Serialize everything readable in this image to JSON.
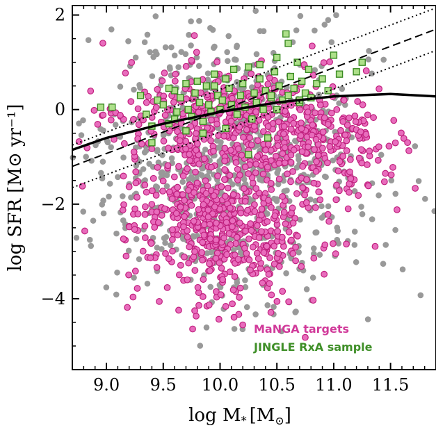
{
  "chart_data": {
    "type": "scatter",
    "xlabel": "log M",
    "xlabel_sub": "*",
    "xlabel_unit": "[M",
    "xlabel_unit_sub": "⊙",
    "xlabel_unit_end": "]",
    "ylabel": "log SFR [M⊙ yr⁻¹]",
    "xlim": [
      8.7,
      11.9
    ],
    "ylim": [
      -5.5,
      2.2
    ],
    "x_ticks": [
      9.0,
      9.5,
      10.0,
      10.5,
      11.0,
      11.5
    ],
    "x_tick_labels": [
      "9.0",
      "9.5",
      "10.0",
      "10.5",
      "11.0",
      "11.5"
    ],
    "y_ticks": [
      -4,
      -2,
      0,
      2
    ],
    "y_tick_labels": [
      "−4",
      "−2",
      "0",
      "2"
    ],
    "grid": false,
    "legend_position": "bottom-right",
    "colors": {
      "background_sample": "#999999",
      "manga_fill": "#e86cbc",
      "manga_edge": "#c0207e",
      "jingle_fill": "#aee08a",
      "jingle_edge": "#3a8a22"
    },
    "series": [
      {
        "name": "MaNGA targets",
        "marker": "circle",
        "distribution": {
          "regions": [
            {
              "x_mean": 10.0,
              "x_sd": 0.42,
              "y_mean": -2.4,
              "y_sd": 0.85,
              "n": 560
            },
            {
              "x_mean": 10.1,
              "x_sd": 0.55,
              "y_mean": -0.2,
              "y_sd": 0.55,
              "n": 420
            },
            {
              "x_mean": 10.9,
              "x_sd": 0.35,
              "y_mean": -0.9,
              "y_sd": 0.65,
              "n": 150
            }
          ]
        }
      },
      {
        "name": "JINGLE RxA sample",
        "marker": "square",
        "x": [
          8.95,
          9.05,
          9.3,
          9.35,
          9.4,
          9.45,
          9.5,
          9.55,
          9.6,
          9.62,
          9.65,
          9.7,
          9.72,
          9.75,
          9.78,
          9.8,
          9.82,
          9.85,
          9.88,
          9.9,
          9.92,
          9.95,
          9.98,
          10.0,
          10.02,
          10.05,
          10.08,
          10.1,
          10.12,
          10.15,
          10.18,
          10.2,
          10.22,
          10.25,
          10.28,
          10.3,
          10.32,
          10.35,
          10.38,
          10.4,
          10.42,
          10.45,
          10.48,
          10.5,
          10.52,
          10.55,
          10.58,
          10.6,
          10.62,
          10.65,
          10.68,
          10.7,
          10.72,
          10.75,
          10.78,
          10.8,
          10.85,
          10.9,
          10.95,
          11.0,
          11.05,
          11.2,
          11.25,
          9.4,
          9.55,
          9.85,
          10.25,
          10.6,
          10.7,
          10.45,
          9.7,
          10.05,
          10.35,
          10.5,
          9.6,
          9.95
        ],
        "y": [
          0.05,
          0.05,
          0.3,
          -0.1,
          -0.7,
          0.2,
          0.1,
          -0.3,
          0.4,
          -0.05,
          0.25,
          0.55,
          0.0,
          -0.15,
          0.35,
          0.6,
          0.15,
          -0.25,
          0.5,
          0.1,
          -0.05,
          0.75,
          0.3,
          0.0,
          0.2,
          -0.4,
          0.45,
          0.1,
          0.85,
          -0.1,
          0.3,
          0.55,
          0.05,
          0.9,
          -0.2,
          0.35,
          0.15,
          0.65,
          0.0,
          0.4,
          -0.6,
          0.25,
          0.8,
          1.1,
          0.5,
          0.2,
          1.6,
          0.3,
          0.7,
          0.45,
          1.0,
          0.15,
          0.6,
          0.35,
          0.85,
          0.25,
          0.55,
          0.65,
          0.4,
          1.15,
          0.75,
          0.8,
          1.0,
          -0.35,
          0.45,
          -0.5,
          -0.95,
          1.4,
          0.2,
          0.3,
          -0.45,
          0.65,
          0.95,
          0.0,
          -0.2,
          0.5
        ]
      },
      {
        "name": "",
        "marker": "circle",
        "distribution": {
          "regions": [
            {
              "x_mean": 10.1,
              "x_sd": 0.6,
              "y_mean": -1.2,
              "y_sd": 1.3,
              "n": 900
            }
          ]
        }
      }
    ],
    "lines": [
      {
        "style": "solid",
        "x": [
          8.7,
          9.0,
          9.5,
          10.0,
          10.5,
          11.0,
          11.5,
          11.9
        ],
        "y": [
          -0.85,
          -0.6,
          -0.3,
          -0.05,
          0.15,
          0.28,
          0.33,
          0.28
        ]
      },
      {
        "style": "dashed",
        "x": [
          8.7,
          11.9
        ],
        "y": [
          -1.2,
          1.7
        ]
      },
      {
        "style": "dotted",
        "x": [
          8.7,
          11.9
        ],
        "y": [
          -0.75,
          2.15
        ]
      },
      {
        "style": "dotted",
        "x": [
          8.7,
          11.9
        ],
        "y": [
          -1.65,
          1.25
        ]
      }
    ],
    "legend": [
      {
        "label": "MaNGA targets",
        "color": "#d13a9a"
      },
      {
        "label": "JINGLE RxA sample",
        "color": "#3f8f28"
      }
    ]
  }
}
